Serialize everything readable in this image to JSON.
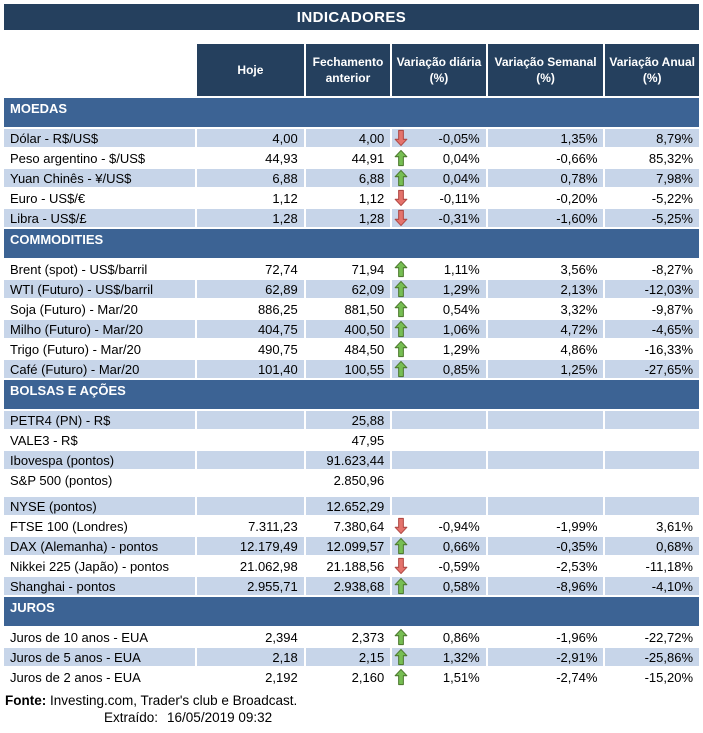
{
  "chart_data": {
    "type": "table",
    "title": "INDICADORES",
    "columns": [
      "Hoje",
      "Fechamento anterior",
      "Variação diária (%)",
      "Variação Semanal (%)",
      "Variação Anual (%)"
    ],
    "sections": [
      {
        "name": "MOEDAS",
        "rows": [
          {
            "label": "Dólar - R$/US$",
            "hoje": "4,00",
            "fechamento": "4,00",
            "arrow": "down",
            "var_diaria": "-0,05%",
            "var_semanal": "1,35%",
            "var_anual": "8,79%"
          },
          {
            "label": "Peso argentino - $/US$",
            "hoje": "44,93",
            "fechamento": "44,91",
            "arrow": "up",
            "var_diaria": "0,04%",
            "var_semanal": "-0,66%",
            "var_anual": "85,32%"
          },
          {
            "label": "Yuan Chinês - ¥/US$",
            "hoje": "6,88",
            "fechamento": "6,88",
            "arrow": "up",
            "var_diaria": "0,04%",
            "var_semanal": "0,78%",
            "var_anual": "7,98%"
          },
          {
            "label": "Euro - US$/€",
            "hoje": "1,12",
            "fechamento": "1,12",
            "arrow": "down",
            "var_diaria": "-0,11%",
            "var_semanal": "-0,20%",
            "var_anual": "-5,22%"
          },
          {
            "label": "Libra - US$/£",
            "hoje": "1,28",
            "fechamento": "1,28",
            "arrow": "down",
            "var_diaria": "-0,31%",
            "var_semanal": "-1,60%",
            "var_anual": "-5,25%"
          }
        ]
      },
      {
        "name": "COMMODITIES",
        "rows": [
          {
            "label": "Brent (spot) - US$/barril",
            "hoje": "72,74",
            "fechamento": "71,94",
            "arrow": "up",
            "var_diaria": "1,11%",
            "var_semanal": "3,56%",
            "var_anual": "-8,27%"
          },
          {
            "label": "WTI (Futuro) - US$/barril",
            "hoje": "62,89",
            "fechamento": "62,09",
            "arrow": "up",
            "var_diaria": "1,29%",
            "var_semanal": "2,13%",
            "var_anual": "-12,03%"
          },
          {
            "label": "Soja (Futuro) - Mar/20",
            "hoje": "886,25",
            "fechamento": "881,50",
            "arrow": "up",
            "var_diaria": "0,54%",
            "var_semanal": "3,32%",
            "var_anual": "-9,87%"
          },
          {
            "label": "Milho (Futuro) - Mar/20",
            "hoje": "404,75",
            "fechamento": "400,50",
            "arrow": "up",
            "var_diaria": "1,06%",
            "var_semanal": "4,72%",
            "var_anual": "-4,65%"
          },
          {
            "label": "Trigo (Futuro) - Mar/20",
            "hoje": "490,75",
            "fechamento": "484,50",
            "arrow": "up",
            "var_diaria": "1,29%",
            "var_semanal": "4,86%",
            "var_anual": "-16,33%"
          },
          {
            "label": "Café (Futuro) - Mar/20",
            "hoje": "101,40",
            "fechamento": "100,55",
            "arrow": "up",
            "var_diaria": "0,85%",
            "var_semanal": "1,25%",
            "var_anual": "-27,65%"
          }
        ]
      },
      {
        "name": "BOLSAS E AÇÕES",
        "rows": [
          {
            "label": "PETR4 (PN) - R$",
            "hoje": "",
            "fechamento": "25,88",
            "arrow": "",
            "var_diaria": "",
            "var_semanal": "",
            "var_anual": ""
          },
          {
            "label": "VALE3 - R$",
            "hoje": "",
            "fechamento": "47,95",
            "arrow": "",
            "var_diaria": "",
            "var_semanal": "",
            "var_anual": ""
          },
          {
            "label": "Ibovespa (pontos)",
            "hoje": "",
            "fechamento": "91.623,44",
            "arrow": "",
            "var_diaria": "",
            "var_semanal": "",
            "var_anual": ""
          },
          {
            "label": "S&P 500 (pontos)",
            "hoje": "",
            "fechamento": "2.850,96",
            "arrow": "",
            "var_diaria": "",
            "var_semanal": "",
            "var_anual": ""
          },
          {
            "label": "NYSE (pontos)",
            "hoje": "",
            "fechamento": "12.652,29",
            "arrow": "",
            "var_diaria": "",
            "var_semanal": "",
            "var_anual": ""
          },
          {
            "label": "FTSE 100 (Londres)",
            "hoje": "7.311,23",
            "fechamento": "7.380,64",
            "arrow": "down",
            "var_diaria": "-0,94%",
            "var_semanal": "-1,99%",
            "var_anual": "3,61%"
          },
          {
            "label": "DAX (Alemanha) - pontos",
            "hoje": "12.179,49",
            "fechamento": "12.099,57",
            "arrow": "up",
            "var_diaria": "0,66%",
            "var_semanal": "-0,35%",
            "var_anual": "0,68%"
          },
          {
            "label": "Nikkei 225 (Japão) - pontos",
            "hoje": "21.062,98",
            "fechamento": "21.188,56",
            "arrow": "down",
            "var_diaria": "-0,59%",
            "var_semanal": "-2,53%",
            "var_anual": "-11,18%"
          },
          {
            "label": "Shanghai - pontos",
            "hoje": "2.955,71",
            "fechamento": "2.938,68",
            "arrow": "up",
            "var_diaria": "0,58%",
            "var_semanal": "-8,96%",
            "var_anual": "-4,10%"
          }
        ]
      },
      {
        "name": "JUROS",
        "rows": [
          {
            "label": "Juros de 10 anos - EUA",
            "hoje": "2,394",
            "fechamento": "2,373",
            "arrow": "up",
            "var_diaria": "0,86%",
            "var_semanal": "-1,96%",
            "var_anual": "-22,72%"
          },
          {
            "label": "Juros de 5 anos - EUA",
            "hoje": "2,18",
            "fechamento": "2,15",
            "arrow": "up",
            "var_diaria": "1,32%",
            "var_semanal": "-2,91%",
            "var_anual": "-25,86%"
          },
          {
            "label": "Juros de 2 anos - EUA",
            "hoje": "2,192",
            "fechamento": "2,160",
            "arrow": "up",
            "var_diaria": "1,51%",
            "var_semanal": "-2,74%",
            "var_anual": "-15,20%"
          }
        ]
      }
    ],
    "footer": {
      "fonte_label": "Fonte:",
      "fonte_rest": "Investing.com, Trader's club e Broadcast.",
      "extraido_label": "Extraído:",
      "extraido_value": "16/05/2019 09:32"
    },
    "icons": {
      "up_arrow": "up-arrow-icon",
      "down_arrow": "down-arrow-icon"
    },
    "colors": {
      "header_navy": "#25405E",
      "section_blue": "#3C6394",
      "row_stripe_blue": "#C7D5E9",
      "arrow_up_fill": "#76BE53",
      "arrow_up_stroke": "#4E7A30",
      "arrow_down_fill": "#E4736C",
      "arrow_down_stroke": "#B04945"
    }
  }
}
